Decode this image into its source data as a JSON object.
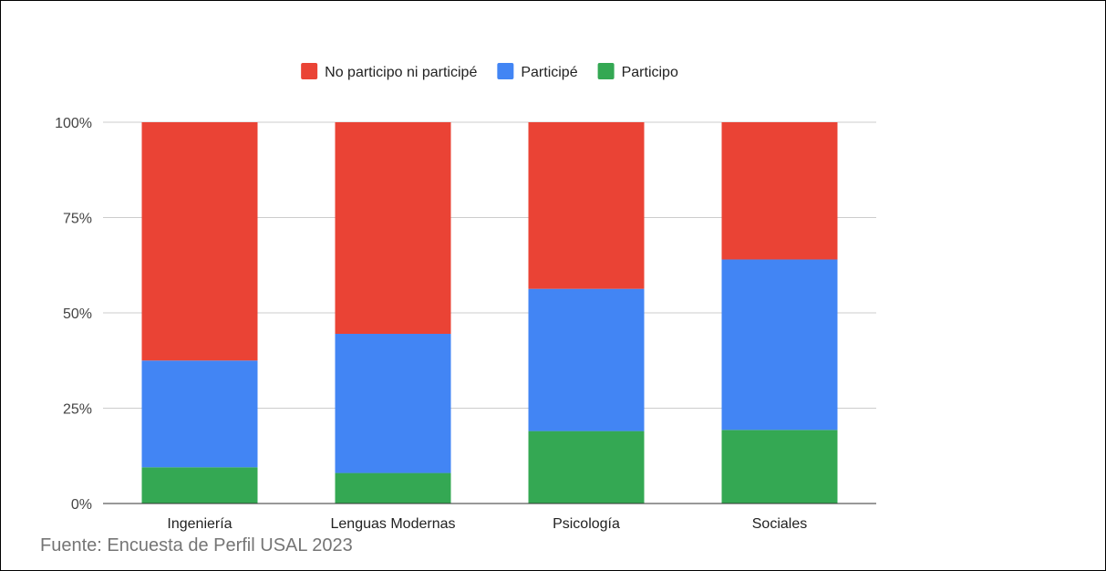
{
  "chart_data": {
    "type": "bar",
    "stacked": "percent",
    "categories": [
      "Ingeniería",
      "Lenguas Modernas",
      "Psicología",
      "Sociales"
    ],
    "series": [
      {
        "name": "Participo",
        "color": "#34a853",
        "values": [
          9.5,
          8.0,
          19.0,
          19.3
        ]
      },
      {
        "name": "Participé",
        "color": "#4285f4",
        "values": [
          28.0,
          36.5,
          37.3,
          44.7
        ]
      },
      {
        "name": "No participo ni participé",
        "color": "#ea4335",
        "values": [
          62.5,
          55.5,
          43.7,
          36.0
        ]
      }
    ],
    "legend_order": [
      "No participo ni participé",
      "Participé",
      "Participo"
    ],
    "legend_position": "top",
    "yticks": [
      "0%",
      "25%",
      "50%",
      "75%",
      "100%"
    ],
    "ylim": [
      0,
      100
    ],
    "grid": true
  },
  "source_note": "Fuente: Encuesta de Perfil USAL 2023"
}
